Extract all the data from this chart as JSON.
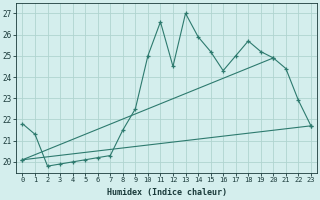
{
  "xlabel": "Humidex (Indice chaleur)",
  "background_color": "#d4eeed",
  "grid_color": "#b0d4d0",
  "line_color": "#2d7a6e",
  "x_values": [
    0,
    1,
    2,
    3,
    4,
    5,
    6,
    7,
    8,
    9,
    10,
    11,
    12,
    13,
    14,
    15,
    16,
    17,
    18,
    19,
    20,
    21,
    22,
    23
  ],
  "series1": [
    21.8,
    21.3,
    19.8,
    19.9,
    20.0,
    20.1,
    20.2,
    20.3,
    21.5,
    22.5,
    25.0,
    26.6,
    24.5,
    27.0,
    25.9,
    25.2,
    24.3,
    25.0,
    25.7,
    25.2,
    24.9,
    24.4,
    22.9,
    21.7
  ],
  "series2_x": [
    0,
    23
  ],
  "series2_y": [
    20.1,
    21.7
  ],
  "series3_x": [
    0,
    20
  ],
  "series3_y": [
    20.1,
    24.9
  ],
  "ylim": [
    19.5,
    27.5
  ],
  "xlim": [
    -0.5,
    23.5
  ],
  "yticks": [
    20,
    21,
    22,
    23,
    24,
    25,
    26,
    27
  ],
  "xticks": [
    0,
    1,
    2,
    3,
    4,
    5,
    6,
    7,
    8,
    9,
    10,
    11,
    12,
    13,
    14,
    15,
    16,
    17,
    18,
    19,
    20,
    21,
    22,
    23
  ]
}
